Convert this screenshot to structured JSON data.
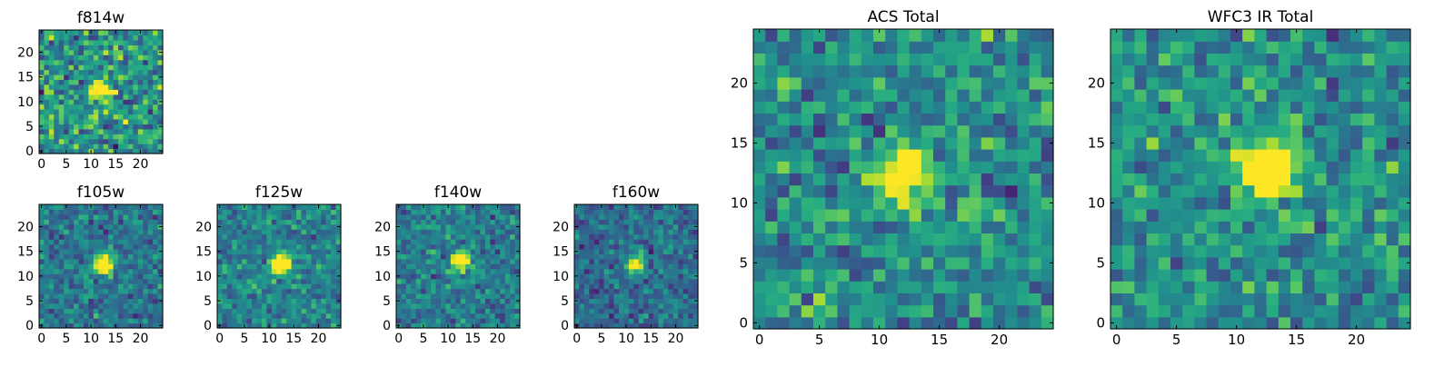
{
  "chart_data": [
    {
      "type": "heatmap",
      "title": "f814w",
      "grid_size": 25,
      "x_ticks": [
        "0",
        "5",
        "10",
        "15",
        "20"
      ],
      "y_ticks": [
        "0",
        "5",
        "10",
        "15",
        "20"
      ],
      "xlim": [
        0,
        25
      ],
      "ylim": [
        0,
        25
      ],
      "colormap": "viridis",
      "source": {
        "center": [
          12,
          12.5
        ],
        "sigma": 1.3,
        "peak": 1.0,
        "background": 0.52,
        "noise": 0.25,
        "seed": 11
      }
    },
    {
      "type": "heatmap",
      "title": "f105w",
      "grid_size": 25,
      "x_ticks": [
        "0",
        "5",
        "10",
        "15",
        "20"
      ],
      "y_ticks": [
        "0",
        "5",
        "10",
        "15",
        "20"
      ],
      "xlim": [
        0,
        25
      ],
      "ylim": [
        0,
        25
      ],
      "colormap": "viridis",
      "source": {
        "center": [
          12.5,
          12.5
        ],
        "sigma": 1.4,
        "peak": 1.0,
        "background": 0.4,
        "noise": 0.16,
        "seed": 23
      }
    },
    {
      "type": "heatmap",
      "title": "f125w",
      "grid_size": 25,
      "x_ticks": [
        "0",
        "5",
        "10",
        "15",
        "20"
      ],
      "y_ticks": [
        "0",
        "5",
        "10",
        "15",
        "20"
      ],
      "xlim": [
        0,
        25
      ],
      "ylim": [
        0,
        25
      ],
      "colormap": "viridis",
      "source": {
        "center": [
          12.5,
          12.5
        ],
        "sigma": 1.4,
        "peak": 1.0,
        "background": 0.45,
        "noise": 0.16,
        "seed": 37
      }
    },
    {
      "type": "heatmap",
      "title": "f140w",
      "grid_size": 25,
      "x_ticks": [
        "0",
        "5",
        "10",
        "15",
        "20"
      ],
      "y_ticks": [
        "0",
        "5",
        "10",
        "15",
        "20"
      ],
      "xlim": [
        0,
        25
      ],
      "ylim": [
        0,
        25
      ],
      "colormap": "viridis",
      "source": {
        "center": [
          12.5,
          12.8
        ],
        "sigma": 1.3,
        "peak": 1.0,
        "background": 0.42,
        "noise": 0.16,
        "seed": 41
      }
    },
    {
      "type": "heatmap",
      "title": "f160w",
      "grid_size": 25,
      "x_ticks": [
        "0",
        "5",
        "10",
        "15",
        "20"
      ],
      "y_ticks": [
        "0",
        "5",
        "10",
        "15",
        "20"
      ],
      "xlim": [
        0,
        25
      ],
      "ylim": [
        0,
        25
      ],
      "colormap": "viridis",
      "source": {
        "center": [
          12,
          12.5
        ],
        "sigma": 1.2,
        "peak": 1.0,
        "background": 0.36,
        "noise": 0.15,
        "seed": 53
      }
    },
    {
      "type": "heatmap",
      "title": "ACS Total",
      "grid_size": 25,
      "x_ticks": [
        "0",
        "5",
        "10",
        "15",
        "20"
      ],
      "y_ticks": [
        "0",
        "5",
        "10",
        "15",
        "20"
      ],
      "xlim": [
        0,
        25
      ],
      "ylim": [
        0,
        25
      ],
      "colormap": "viridis",
      "source": {
        "center": [
          12,
          12.5
        ],
        "sigma": 1.5,
        "peak": 1.0,
        "background": 0.5,
        "noise": 0.2,
        "seed": 67
      }
    },
    {
      "type": "heatmap",
      "title": "WFC3 IR Total",
      "grid_size": 25,
      "x_ticks": [
        "0",
        "5",
        "10",
        "15",
        "20"
      ],
      "y_ticks": [
        "0",
        "5",
        "10",
        "15",
        "20"
      ],
      "xlim": [
        0,
        25
      ],
      "ylim": [
        0,
        25
      ],
      "colormap": "viridis",
      "source": {
        "center": [
          12.5,
          12.8
        ],
        "sigma": 1.6,
        "peak": 1.0,
        "background": 0.5,
        "noise": 0.19,
        "seed": 79
      }
    }
  ]
}
